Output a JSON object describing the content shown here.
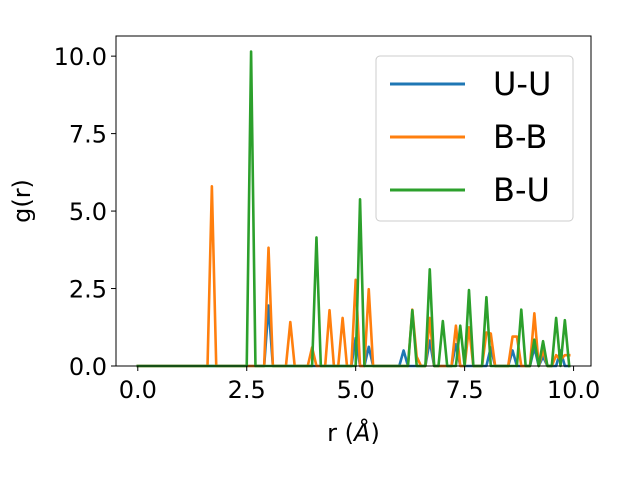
{
  "chart_data": {
    "type": "line",
    "xlabel": "r (Å)",
    "xlabel_prefix": "r (",
    "xlabel_symbol": "Å",
    "xlabel_suffix": ")",
    "ylabel": "g(r)",
    "xlim": [
      -0.5,
      10.4
    ],
    "ylim": [
      0,
      10.65
    ],
    "xticks": [
      0.0,
      2.5,
      5.0,
      7.5,
      10.0
    ],
    "xtick_labels": [
      "0.0",
      "2.5",
      "5.0",
      "7.5",
      "10.0"
    ],
    "yticks": [
      0.0,
      2.5,
      5.0,
      7.5,
      10.0
    ],
    "ytick_labels": [
      "0.0",
      "2.5",
      "5.0",
      "7.5",
      "10.0"
    ],
    "grid": false,
    "legend_position": "upper-right",
    "series": [
      {
        "name": "U-U",
        "color": "#1f77b4",
        "x": [
          0.0,
          2.8,
          2.9,
          3.0,
          3.1,
          3.2,
          4.8,
          4.9,
          5.0,
          5.1,
          5.2,
          5.3,
          5.4,
          5.5,
          5.9,
          6.0,
          6.1,
          6.2,
          6.3,
          6.4,
          6.5,
          6.6,
          6.7,
          6.8,
          6.9,
          7.0,
          7.1,
          7.2,
          7.3,
          7.4,
          7.5,
          7.6,
          7.7,
          7.8,
          7.9,
          8.0,
          8.1,
          8.2,
          8.3,
          8.4,
          8.5,
          8.6,
          8.7,
          8.8,
          8.9,
          9.0,
          9.1,
          9.2,
          9.3,
          9.4,
          9.5,
          9.6,
          9.7,
          9.8,
          9.9
        ],
        "y": [
          0.0,
          0.0,
          0.0,
          1.95,
          0.0,
          0.0,
          0.0,
          0.0,
          0.9,
          0.0,
          0.0,
          0.62,
          0.0,
          0.0,
          0.0,
          0.0,
          0.5,
          0.0,
          0.0,
          0.0,
          0.0,
          0.0,
          0.82,
          0.0,
          0.0,
          0.0,
          0.0,
          0.0,
          0.7,
          0.0,
          0.0,
          0.0,
          0.0,
          0.0,
          0.0,
          0.0,
          0.6,
          0.0,
          0.0,
          0.0,
          0.0,
          0.5,
          0.0,
          0.0,
          0.0,
          0.0,
          0.6,
          0.0,
          0.3,
          0.0,
          0.0,
          0.0,
          0.5,
          0.0,
          0.0
        ]
      },
      {
        "name": "B-B",
        "color": "#ff7f0e",
        "x": [
          0.0,
          1.6,
          1.7,
          1.8,
          2.9,
          3.0,
          3.1,
          3.4,
          3.5,
          3.6,
          3.9,
          4.0,
          4.1,
          4.2,
          4.3,
          4.4,
          4.5,
          4.6,
          4.7,
          4.8,
          4.9,
          5.0,
          5.1,
          5.2,
          5.3,
          5.4,
          5.5,
          5.9,
          6.0,
          6.1,
          6.2,
          6.3,
          6.4,
          6.5,
          6.6,
          6.7,
          6.8,
          6.9,
          7.0,
          7.1,
          7.2,
          7.3,
          7.4,
          7.5,
          7.6,
          7.7,
          7.8,
          7.9,
          8.0,
          8.1,
          8.2,
          8.3,
          8.4,
          8.5,
          8.6,
          8.7,
          8.8,
          8.9,
          9.0,
          9.1,
          9.2,
          9.3,
          9.4,
          9.5,
          9.6,
          9.7,
          9.8,
          9.9
        ],
        "y": [
          0.0,
          0.0,
          5.8,
          0.0,
          0.0,
          3.82,
          0.0,
          0.0,
          1.42,
          0.0,
          0.0,
          0.6,
          0.0,
          0.0,
          0.0,
          1.8,
          0.0,
          0.0,
          1.55,
          0.0,
          0.0,
          2.78,
          0.0,
          0.0,
          2.48,
          0.0,
          0.0,
          0.0,
          0.0,
          0.0,
          0.0,
          1.82,
          0.3,
          0.0,
          0.0,
          1.55,
          0.0,
          0.0,
          0.0,
          0.0,
          0.0,
          1.3,
          0.0,
          0.0,
          1.25,
          0.0,
          0.0,
          0.0,
          1.08,
          1.05,
          0.0,
          0.0,
          0.0,
          0.0,
          0.95,
          0.95,
          0.0,
          0.0,
          0.0,
          1.7,
          0.0,
          0.5,
          0.0,
          0.0,
          0.35,
          0.2,
          0.35,
          0.35
        ]
      },
      {
        "name": "B-U",
        "color": "#2ca02c",
        "x": [
          0.0,
          2.5,
          2.6,
          2.7,
          3.9,
          4.0,
          4.1,
          4.2,
          4.3,
          4.9,
          5.0,
          5.1,
          5.2,
          5.3,
          6.1,
          6.2,
          6.3,
          6.4,
          6.5,
          6.6,
          6.7,
          6.8,
          6.9,
          7.0,
          7.1,
          7.2,
          7.3,
          7.4,
          7.5,
          7.6,
          7.7,
          7.8,
          7.9,
          8.0,
          8.1,
          8.2,
          8.3,
          8.4,
          8.5,
          8.6,
          8.7,
          8.8,
          8.9,
          9.0,
          9.1,
          9.2,
          9.3,
          9.4,
          9.5,
          9.6,
          9.7,
          9.8,
          9.9
        ],
        "y": [
          0.0,
          0.0,
          10.15,
          0.0,
          0.0,
          0.0,
          4.15,
          0.0,
          0.0,
          0.0,
          0.0,
          5.38,
          0.0,
          0.0,
          0.0,
          0.0,
          1.8,
          0.0,
          0.0,
          0.0,
          3.12,
          0.0,
          0.0,
          1.45,
          0.0,
          0.0,
          0.0,
          1.3,
          0.0,
          2.45,
          0.0,
          0.0,
          0.0,
          2.22,
          0.0,
          0.0,
          0.0,
          0.0,
          0.0,
          0.0,
          0.0,
          1.82,
          0.0,
          0.0,
          0.85,
          0.0,
          0.8,
          0.0,
          0.0,
          1.55,
          0.0,
          1.48,
          0.0
        ]
      }
    ]
  }
}
